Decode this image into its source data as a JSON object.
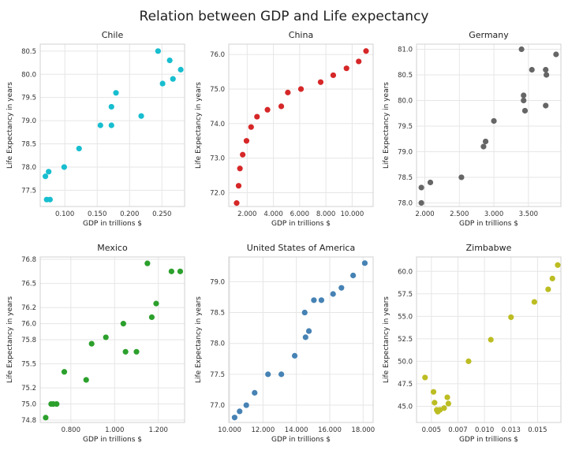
{
  "title": "Relation between GDP and Life expectancy",
  "chart_data": [
    {
      "type": "scatter",
      "title": "Chile",
      "xlabel": "GDP in trillions $",
      "ylabel": "Life Expectancy in years",
      "color": "#17becf",
      "xlim": [
        0.062,
        0.285
      ],
      "ylim": [
        77.15,
        80.65
      ],
      "xticks": [
        0.1,
        0.15,
        0.2,
        0.25
      ],
      "xtick_labels": [
        "0.100",
        "0.150",
        "0.200",
        "0.250"
      ],
      "yticks": [
        77.5,
        78.0,
        78.5,
        79.0,
        79.5,
        80.0,
        80.5
      ],
      "ytick_labels": [
        "77.5",
        "78.0",
        "78.5",
        "79.0",
        "79.5",
        "80.0",
        "80.5"
      ],
      "points": [
        {
          "x": 0.07,
          "y": 77.8
        },
        {
          "x": 0.072,
          "y": 77.3
        },
        {
          "x": 0.075,
          "y": 77.9
        },
        {
          "x": 0.077,
          "y": 77.3
        },
        {
          "x": 0.099,
          "y": 78.0
        },
        {
          "x": 0.122,
          "y": 78.4
        },
        {
          "x": 0.155,
          "y": 78.9
        },
        {
          "x": 0.172,
          "y": 78.9
        },
        {
          "x": 0.172,
          "y": 79.3
        },
        {
          "x": 0.179,
          "y": 79.6
        },
        {
          "x": 0.218,
          "y": 79.1
        },
        {
          "x": 0.244,
          "y": 80.5
        },
        {
          "x": 0.251,
          "y": 79.8
        },
        {
          "x": 0.262,
          "y": 80.3
        },
        {
          "x": 0.267,
          "y": 79.9
        },
        {
          "x": 0.279,
          "y": 80.1
        }
      ]
    },
    {
      "type": "scatter",
      "title": "China",
      "xlabel": "GDP in trillions $",
      "ylabel": "Life Expectancy in years",
      "color": "#d62728",
      "xlim": [
        600,
        11600
      ],
      "ylim": [
        71.6,
        76.3
      ],
      "xticks": [
        2000,
        4000,
        6000,
        8000,
        10000
      ],
      "xtick_labels": [
        "2.000",
        "4.000",
        "6.000",
        "8.000",
        "10.000"
      ],
      "yticks": [
        72,
        73,
        74,
        75,
        76
      ],
      "ytick_labels": [
        "72.0",
        "73.0",
        "74.0",
        "75.0",
        "76.0"
      ],
      "points": [
        {
          "x": 1200,
          "y": 71.7
        },
        {
          "x": 1350,
          "y": 72.2
        },
        {
          "x": 1450,
          "y": 72.7
        },
        {
          "x": 1660,
          "y": 73.1
        },
        {
          "x": 1950,
          "y": 73.5
        },
        {
          "x": 2300,
          "y": 73.9
        },
        {
          "x": 2750,
          "y": 74.2
        },
        {
          "x": 3550,
          "y": 74.4
        },
        {
          "x": 4600,
          "y": 74.5
        },
        {
          "x": 5100,
          "y": 74.9
        },
        {
          "x": 6100,
          "y": 75.0
        },
        {
          "x": 7600,
          "y": 75.2
        },
        {
          "x": 8560,
          "y": 75.4
        },
        {
          "x": 9570,
          "y": 75.6
        },
        {
          "x": 10500,
          "y": 75.8
        },
        {
          "x": 11060,
          "y": 76.1
        }
      ]
    },
    {
      "type": "scatter",
      "title": "Germany",
      "xlabel": "GDP in trillions $",
      "ylabel": "Life Expectancy in years",
      "color": "#666666",
      "xlim": [
        1.88,
        3.97
      ],
      "ylim": [
        77.93,
        81.1
      ],
      "xticks": [
        2.0,
        2.5,
        3.0,
        3.5
      ],
      "xtick_labels": [
        "2.000",
        "2.500",
        "3.000",
        "3.500"
      ],
      "yticks": [
        78.0,
        78.5,
        79.0,
        79.5,
        80.0,
        80.5,
        81.0
      ],
      "ytick_labels": [
        "78.0",
        "78.5",
        "79.0",
        "79.5",
        "80.0",
        "80.5",
        "81.0"
      ],
      "points": [
        {
          "x": 1.95,
          "y": 78.3
        },
        {
          "x": 1.95,
          "y": 78.0
        },
        {
          "x": 2.08,
          "y": 78.4
        },
        {
          "x": 2.53,
          "y": 78.5
        },
        {
          "x": 2.85,
          "y": 79.1
        },
        {
          "x": 2.88,
          "y": 79.2
        },
        {
          "x": 3.0,
          "y": 79.6
        },
        {
          "x": 3.4,
          "y": 81.0
        },
        {
          "x": 3.43,
          "y": 80.1
        },
        {
          "x": 3.43,
          "y": 80.0
        },
        {
          "x": 3.45,
          "y": 79.8
        },
        {
          "x": 3.55,
          "y": 80.6
        },
        {
          "x": 3.75,
          "y": 80.6
        },
        {
          "x": 3.75,
          "y": 79.9
        },
        {
          "x": 3.76,
          "y": 80.5
        },
        {
          "x": 3.9,
          "y": 80.9
        }
      ]
    },
    {
      "type": "scatter",
      "title": "Mexico",
      "xlabel": "GDP in trillions $",
      "ylabel": "Life Expectancy in years",
      "color": "#2ca02c",
      "xlim": [
        0.66,
        1.32
      ],
      "ylim": [
        74.77,
        76.83
      ],
      "xticks": [
        0.8,
        1.0,
        1.2
      ],
      "xtick_labels": [
        "0.800",
        "1.000",
        "1.200"
      ],
      "yticks": [
        74.8,
        75.0,
        75.2,
        75.5,
        75.8,
        76.0,
        76.2,
        76.5,
        76.8
      ],
      "ytick_labels": [
        "74.8",
        "75.0",
        "75.2",
        "75.5",
        "75.8",
        "76.0",
        "76.2",
        "76.5",
        "76.8"
      ],
      "points": [
        {
          "x": 0.685,
          "y": 74.83
        },
        {
          "x": 0.71,
          "y": 75.0
        },
        {
          "x": 0.72,
          "y": 75.0
        },
        {
          "x": 0.735,
          "y": 75.0
        },
        {
          "x": 0.77,
          "y": 75.4
        },
        {
          "x": 0.87,
          "y": 75.3
        },
        {
          "x": 0.895,
          "y": 75.75
        },
        {
          "x": 0.96,
          "y": 75.83
        },
        {
          "x": 1.04,
          "y": 76.0
        },
        {
          "x": 1.05,
          "y": 75.65
        },
        {
          "x": 1.1,
          "y": 75.65
        },
        {
          "x": 1.15,
          "y": 76.75
        },
        {
          "x": 1.17,
          "y": 76.08
        },
        {
          "x": 1.19,
          "y": 76.25
        },
        {
          "x": 1.26,
          "y": 76.65
        },
        {
          "x": 1.3,
          "y": 76.65
        }
      ]
    },
    {
      "type": "scatter",
      "title": "United States of America",
      "xlabel": "GDP in trillions $",
      "ylabel": "Life Expectancy in years",
      "color": "#4682b4",
      "xlim": [
        9950,
        18600
      ],
      "ylim": [
        76.72,
        79.4
      ],
      "xticks": [
        10000,
        12000,
        14000,
        16000,
        18000
      ],
      "xtick_labels": [
        "10.000",
        "12.000",
        "14.000",
        "16.000",
        "18.000"
      ],
      "yticks": [
        77.0,
        77.5,
        78.0,
        78.5,
        79.0
      ],
      "ytick_labels": [
        "77.0",
        "77.5",
        "78.0",
        "78.5",
        "79.0"
      ],
      "points": [
        {
          "x": 10300,
          "y": 76.8
        },
        {
          "x": 10600,
          "y": 76.9
        },
        {
          "x": 11000,
          "y": 77.0
        },
        {
          "x": 11500,
          "y": 77.2
        },
        {
          "x": 12300,
          "y": 77.5
        },
        {
          "x": 13100,
          "y": 77.5
        },
        {
          "x": 13900,
          "y": 77.8
        },
        {
          "x": 14500,
          "y": 78.5
        },
        {
          "x": 14550,
          "y": 78.1
        },
        {
          "x": 14750,
          "y": 78.2
        },
        {
          "x": 15050,
          "y": 78.7
        },
        {
          "x": 15500,
          "y": 78.7
        },
        {
          "x": 16200,
          "y": 78.8
        },
        {
          "x": 16700,
          "y": 78.9
        },
        {
          "x": 17400,
          "y": 79.1
        },
        {
          "x": 18100,
          "y": 79.3
        }
      ]
    },
    {
      "type": "scatter",
      "title": "Zimbabwe",
      "xlabel": "GDP in trillions $",
      "ylabel": "Life Expectancy in years",
      "color": "#bcbd22",
      "xlim": [
        0.0036,
        0.0172
      ],
      "ylim": [
        43.2,
        61.6
      ],
      "xticks": [
        0.005,
        0.0075,
        0.01,
        0.0125,
        0.015
      ],
      "xtick_labels": [
        "0.005",
        "0.007",
        "0.010",
        "0.013",
        "0.015"
      ],
      "yticks": [
        45,
        47.5,
        50,
        52.5,
        55,
        57.5,
        60
      ],
      "ytick_labels": [
        "45.0",
        "47.5",
        "50.0",
        "52.5",
        "55.0",
        "57.5",
        "60.0"
      ],
      "points": [
        {
          "x": 0.0044,
          "y": 48.2
        },
        {
          "x": 0.0052,
          "y": 46.6
        },
        {
          "x": 0.0053,
          "y": 45.4
        },
        {
          "x": 0.0055,
          "y": 44.6
        },
        {
          "x": 0.0056,
          "y": 44.4
        },
        {
          "x": 0.0058,
          "y": 44.6
        },
        {
          "x": 0.0062,
          "y": 44.8
        },
        {
          "x": 0.0065,
          "y": 46.0
        },
        {
          "x": 0.0066,
          "y": 45.3
        },
        {
          "x": 0.0085,
          "y": 50.0
        },
        {
          "x": 0.0106,
          "y": 52.4
        },
        {
          "x": 0.0125,
          "y": 54.9
        },
        {
          "x": 0.0147,
          "y": 56.6
        },
        {
          "x": 0.016,
          "y": 58.0
        },
        {
          "x": 0.0164,
          "y": 59.2
        },
        {
          "x": 0.0169,
          "y": 60.7
        }
      ]
    }
  ]
}
